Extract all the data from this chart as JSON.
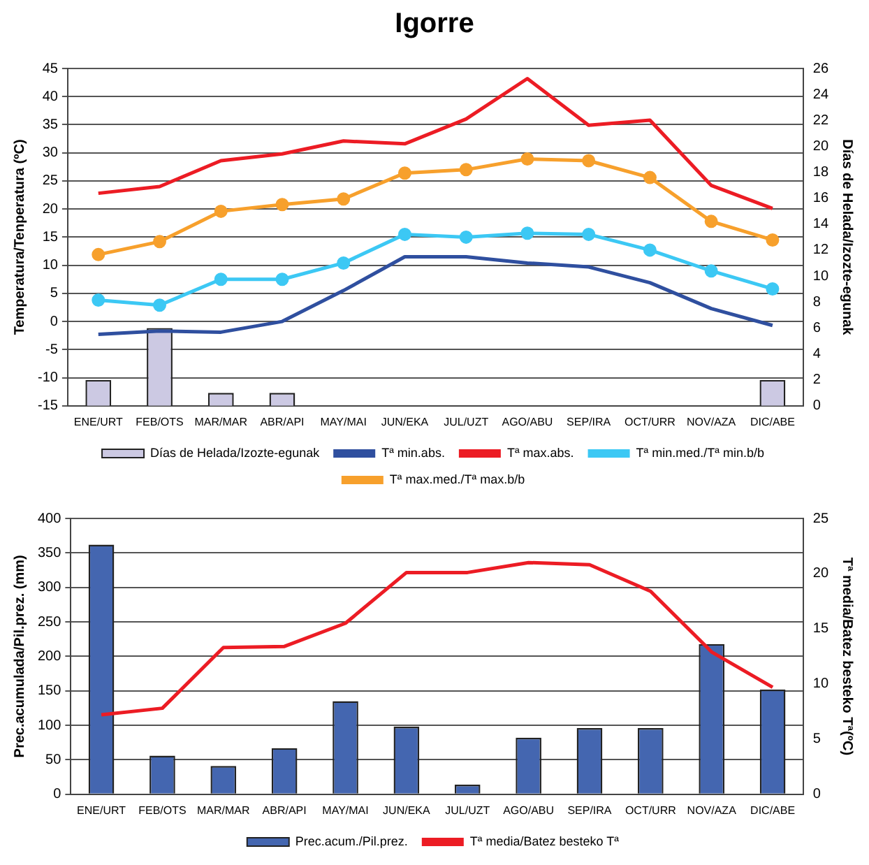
{
  "chart_data": [
    {
      "type": "line",
      "title": "Igorre",
      "ylabel": "Temperatura/Tenperatura (ºC)",
      "y2label": "Días de Helada/Izozte-egunak",
      "categories": [
        "ENE/URT",
        "FEB/OTS",
        "MAR/MAR",
        "ABR/API",
        "MAY/MAI",
        "JUN/EKA",
        "JUL/UZT",
        "AGO/ABU",
        "SEP/IRA",
        "OCT/URR",
        "NOV/AZA",
        "DIC/ABE"
      ],
      "ylim": [
        -15,
        45
      ],
      "yticks": [
        -15,
        -10,
        -5,
        0,
        5,
        10,
        15,
        20,
        25,
        30,
        35,
        40,
        45
      ],
      "y2lim": [
        0,
        26
      ],
      "y2ticks": [
        0,
        2,
        4,
        6,
        8,
        10,
        12,
        14,
        16,
        18,
        20,
        22,
        24,
        26
      ],
      "grid": "y",
      "legend": "bottom",
      "series": [
        {
          "name": "Días de Helada/Izozte-egunak",
          "type": "bar",
          "axis": "y2",
          "color": "#ccc9e3",
          "values": [
            2,
            6,
            1,
            1,
            0,
            0,
            0,
            0,
            0,
            0,
            0,
            2
          ]
        },
        {
          "name": "Tª min.abs.",
          "color": "#2f4f9f",
          "marker": "none",
          "values": [
            -2.3,
            -1.7,
            -1.9,
            0,
            5.5,
            11.5,
            11.5,
            10.4,
            9.7,
            6.9,
            2.3,
            -0.7
          ]
        },
        {
          "name": "Tª max.abs.",
          "color": "#ec1c24",
          "marker": "none",
          "values": [
            22.8,
            24,
            28.6,
            29.8,
            32.1,
            31.6,
            36,
            43.2,
            34.9,
            35.8,
            24.2,
            20.1
          ]
        },
        {
          "name": "Tª min.med./Tª min.b/b",
          "color": "#3cc8f4",
          "marker": "circle",
          "values": [
            3.8,
            2.9,
            7.5,
            7.5,
            10.4,
            15.5,
            15,
            15.7,
            15.5,
            12.7,
            9,
            5.8
          ]
        },
        {
          "name": "Tª max.med./Tª max.b/b",
          "color": "#f7a02c",
          "marker": "circle",
          "values": [
            11.9,
            14.2,
            19.6,
            20.8,
            21.8,
            26.4,
            27,
            28.9,
            28.6,
            25.6,
            17.8,
            14.5
          ]
        }
      ]
    },
    {
      "type": "bar",
      "ylabel": "Prec.acumulada/Pil.prez. (mm)",
      "y2label": "Tª media/Batez besteko Tª(ºC)",
      "categories": [
        "ENE/URT",
        "FEB/OTS",
        "MAR/MAR",
        "ABR/API",
        "MAY/MAI",
        "JUN/EKA",
        "JUL/UZT",
        "AGO/ABU",
        "SEP/IRA",
        "OCT/URR",
        "NOV/AZA",
        "DIC/ABE"
      ],
      "ylim": [
        0,
        400
      ],
      "yticks": [
        0,
        50,
        100,
        150,
        200,
        250,
        300,
        350,
        400
      ],
      "y2lim": [
        0,
        25
      ],
      "y2ticks": [
        0,
        5,
        10,
        15,
        20,
        25
      ],
      "grid": "y",
      "legend": "bottom",
      "series": [
        {
          "name": "Prec.acum./Pil.prez.",
          "color": "#4466b0",
          "values": [
            362,
            56,
            41,
            67,
            135,
            98,
            14,
            82,
            96,
            96,
            218,
            152
          ]
        },
        {
          "name": "Tª media/Batez besteko Tª",
          "type": "line",
          "axis": "y2",
          "color": "#ec1c24",
          "marker": "none",
          "values": [
            7.2,
            7.8,
            13.3,
            13.4,
            15.5,
            20.1,
            20.1,
            21,
            20.8,
            18.4,
            12.9,
            9.7
          ]
        }
      ]
    }
  ]
}
